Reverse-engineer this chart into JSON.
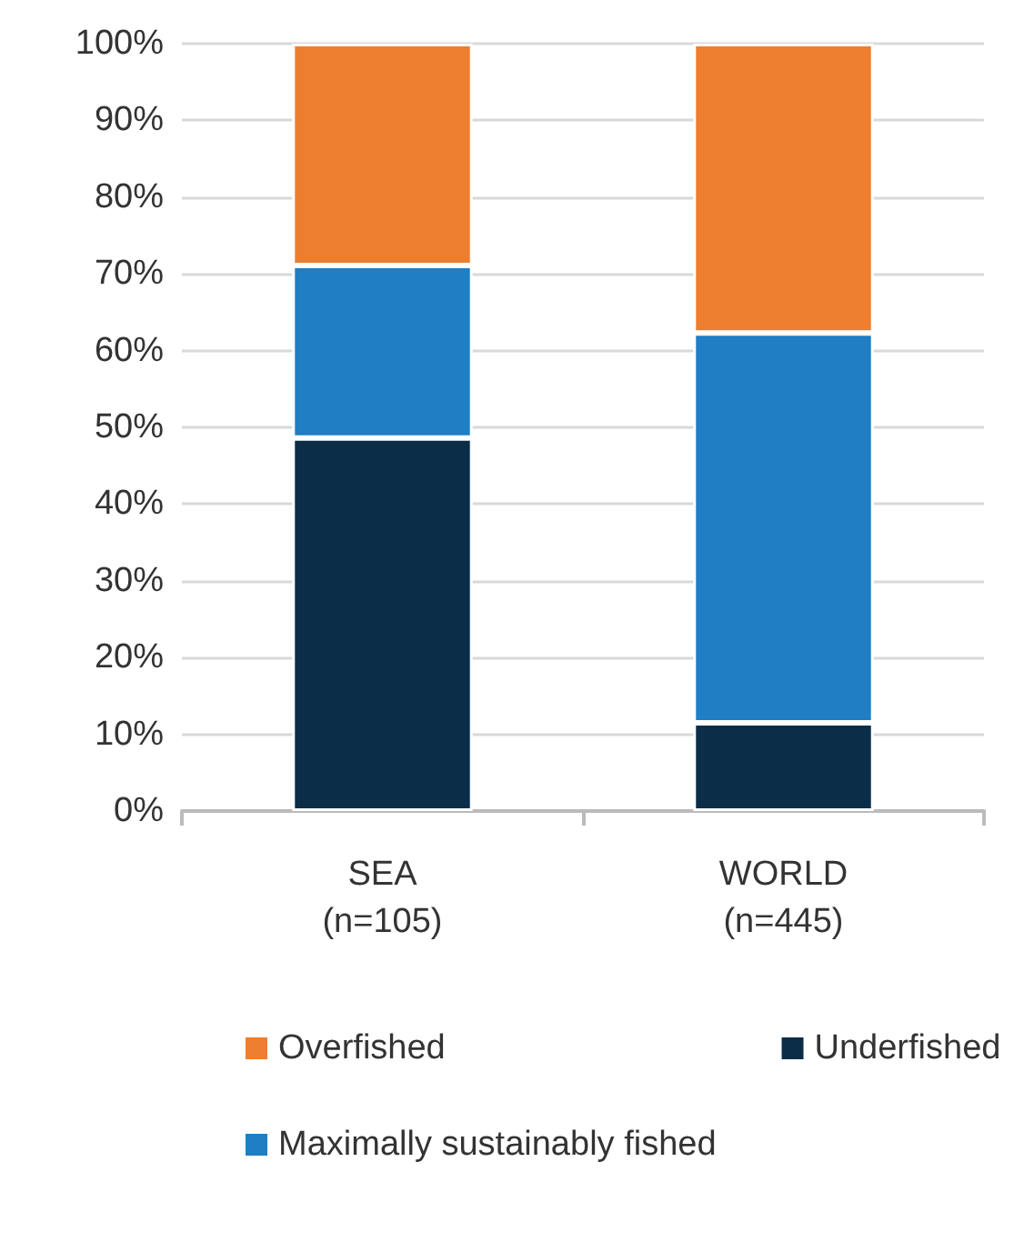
{
  "chart_data": {
    "type": "bar",
    "stacked": true,
    "categories": [
      "SEA\n(n=105)",
      "WORLD\n(n=445)"
    ],
    "series": [
      {
        "name": "Underfished",
        "color": "#0b2d48",
        "values": [
          48.6,
          11.5
        ]
      },
      {
        "name": "Maximally sustainably fished",
        "color": "#1f7ec4",
        "values": [
          22.5,
          50.8
        ]
      },
      {
        "name": "Overfished",
        "color": "#ee7e2f",
        "values": [
          28.9,
          37.7
        ]
      }
    ],
    "ylim": [
      0,
      100
    ],
    "yticks": [
      {
        "value": 0,
        "label": "0%"
      },
      {
        "value": 10,
        "label": "10%"
      },
      {
        "value": 20,
        "label": "20%"
      },
      {
        "value": 30,
        "label": "30%"
      },
      {
        "value": 40,
        "label": "40%"
      },
      {
        "value": 50,
        "label": "50%"
      },
      {
        "value": 60,
        "label": "60%"
      },
      {
        "value": 70,
        "label": "70%"
      },
      {
        "value": 80,
        "label": "80%"
      },
      {
        "value": 90,
        "label": "90%"
      },
      {
        "value": 100,
        "label": "100%"
      }
    ],
    "grid": "y",
    "legend": "bottom"
  }
}
